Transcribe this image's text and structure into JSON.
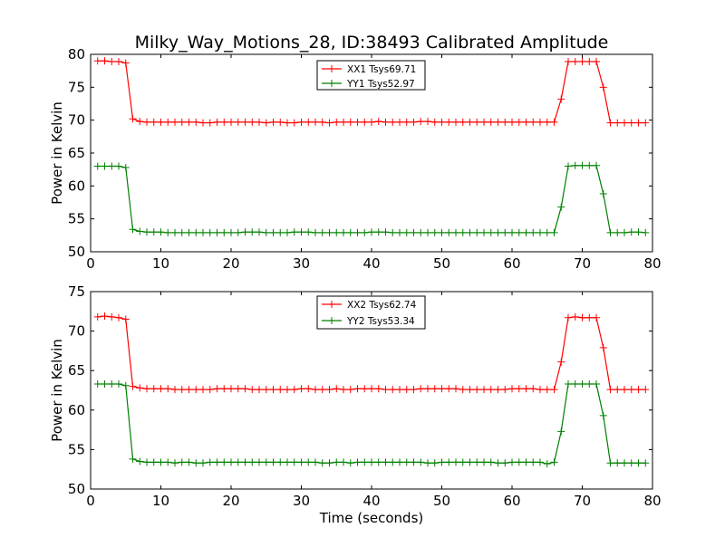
{
  "page": {
    "title": "Milky_Way_Motions_28, ID:38493 Calibrated Amplitude"
  },
  "colors": {
    "series_a": "#ff0000",
    "series_b": "#008000",
    "axes": "#000000",
    "background": "#ffffff"
  },
  "chart_data": [
    {
      "type": "line",
      "title": "Milky_Way_Motions_28, ID:38493 Calibrated Amplitude",
      "xlabel": "",
      "ylabel": "Power in Kelvin",
      "xlim": [
        0,
        80
      ],
      "ylim": [
        50,
        80
      ],
      "xticks": [
        0,
        10,
        20,
        30,
        40,
        50,
        60,
        70,
        80
      ],
      "yticks": [
        50,
        55,
        60,
        65,
        70,
        75,
        80
      ],
      "grid": false,
      "legend_position": "top-center",
      "marker": "plus",
      "series": [
        {
          "name": "XX1 Tsys69.71",
          "color": "#ff0000",
          "x": [
            1,
            2,
            3,
            4,
            5,
            6,
            7,
            8,
            9,
            10,
            11,
            12,
            13,
            14,
            15,
            16,
            17,
            18,
            19,
            20,
            21,
            22,
            23,
            24,
            25,
            26,
            27,
            28,
            29,
            30,
            31,
            32,
            33,
            34,
            35,
            36,
            37,
            38,
            39,
            40,
            41,
            42,
            43,
            44,
            45,
            46,
            47,
            48,
            49,
            50,
            51,
            52,
            53,
            54,
            55,
            56,
            57,
            58,
            59,
            60,
            61,
            62,
            63,
            64,
            65,
            66,
            67,
            68,
            69,
            70,
            71,
            72,
            73,
            74,
            75,
            76,
            77,
            78,
            79
          ],
          "values": [
            79.0,
            79.0,
            78.9,
            78.9,
            78.7,
            70.2,
            69.8,
            69.7,
            69.7,
            69.7,
            69.7,
            69.7,
            69.7,
            69.7,
            69.7,
            69.6,
            69.6,
            69.7,
            69.7,
            69.7,
            69.7,
            69.7,
            69.7,
            69.7,
            69.6,
            69.7,
            69.7,
            69.6,
            69.6,
            69.7,
            69.7,
            69.7,
            69.7,
            69.6,
            69.7,
            69.7,
            69.7,
            69.7,
            69.7,
            69.7,
            69.8,
            69.7,
            69.7,
            69.7,
            69.7,
            69.7,
            69.8,
            69.8,
            69.7,
            69.7,
            69.7,
            69.7,
            69.7,
            69.7,
            69.7,
            69.7,
            69.7,
            69.7,
            69.7,
            69.7,
            69.7,
            69.7,
            69.7,
            69.7,
            69.7,
            69.7,
            73.2,
            78.9,
            78.9,
            78.9,
            78.9,
            78.9,
            75.0,
            69.6,
            69.6,
            69.6,
            69.6,
            69.6,
            69.6
          ]
        },
        {
          "name": "YY1 Tsys52.97",
          "color": "#008000",
          "x": [
            1,
            2,
            3,
            4,
            5,
            6,
            7,
            8,
            9,
            10,
            11,
            12,
            13,
            14,
            15,
            16,
            17,
            18,
            19,
            20,
            21,
            22,
            23,
            24,
            25,
            26,
            27,
            28,
            29,
            30,
            31,
            32,
            33,
            34,
            35,
            36,
            37,
            38,
            39,
            40,
            41,
            42,
            43,
            44,
            45,
            46,
            47,
            48,
            49,
            50,
            51,
            52,
            53,
            54,
            55,
            56,
            57,
            58,
            59,
            60,
            61,
            62,
            63,
            64,
            65,
            66,
            67,
            68,
            69,
            70,
            71,
            72,
            73,
            74,
            75,
            76,
            77,
            78,
            79
          ],
          "values": [
            63.0,
            63.0,
            63.0,
            63.0,
            62.8,
            53.4,
            53.1,
            53.0,
            53.0,
            53.0,
            52.9,
            52.9,
            52.9,
            52.9,
            52.9,
            52.9,
            52.9,
            52.9,
            52.9,
            52.9,
            52.9,
            53.0,
            53.0,
            53.0,
            52.9,
            52.9,
            52.9,
            52.9,
            53.0,
            53.0,
            53.0,
            52.9,
            52.9,
            52.9,
            52.9,
            52.9,
            52.9,
            52.9,
            52.9,
            53.0,
            53.0,
            53.0,
            52.9,
            52.9,
            52.9,
            52.9,
            52.9,
            52.9,
            52.9,
            52.9,
            52.9,
            52.9,
            52.9,
            52.9,
            52.9,
            52.9,
            52.9,
            52.9,
            52.9,
            52.9,
            52.9,
            52.9,
            52.9,
            52.9,
            52.9,
            52.9,
            56.8,
            63.0,
            63.1,
            63.1,
            63.1,
            63.1,
            58.8,
            52.9,
            52.9,
            52.9,
            53.0,
            53.0,
            52.9
          ]
        }
      ]
    },
    {
      "type": "line",
      "title": "",
      "xlabel": "Time (seconds)",
      "ylabel": "Power in Kelvin",
      "xlim": [
        0,
        80
      ],
      "ylim": [
        50,
        75
      ],
      "xticks": [
        0,
        10,
        20,
        30,
        40,
        50,
        60,
        70,
        80
      ],
      "yticks": [
        50,
        55,
        60,
        65,
        70,
        75
      ],
      "grid": false,
      "legend_position": "top-center",
      "marker": "plus",
      "series": [
        {
          "name": "XX2 Tsys62.74",
          "color": "#ff0000",
          "x": [
            1,
            2,
            3,
            4,
            5,
            6,
            7,
            8,
            9,
            10,
            11,
            12,
            13,
            14,
            15,
            16,
            17,
            18,
            19,
            20,
            21,
            22,
            23,
            24,
            25,
            26,
            27,
            28,
            29,
            30,
            31,
            32,
            33,
            34,
            35,
            36,
            37,
            38,
            39,
            40,
            41,
            42,
            43,
            44,
            45,
            46,
            47,
            48,
            49,
            50,
            51,
            52,
            53,
            54,
            55,
            56,
            57,
            58,
            59,
            60,
            61,
            62,
            63,
            64,
            65,
            66,
            67,
            68,
            69,
            70,
            71,
            72,
            73,
            74,
            75,
            76,
            77,
            78,
            79
          ],
          "values": [
            71.8,
            71.9,
            71.8,
            71.7,
            71.5,
            63.0,
            62.8,
            62.7,
            62.7,
            62.7,
            62.7,
            62.6,
            62.6,
            62.6,
            62.6,
            62.6,
            62.6,
            62.7,
            62.7,
            62.7,
            62.7,
            62.7,
            62.6,
            62.6,
            62.6,
            62.6,
            62.6,
            62.6,
            62.6,
            62.7,
            62.7,
            62.6,
            62.6,
            62.6,
            62.7,
            62.6,
            62.6,
            62.7,
            62.7,
            62.7,
            62.7,
            62.6,
            62.6,
            62.6,
            62.6,
            62.6,
            62.7,
            62.7,
            62.7,
            62.7,
            62.7,
            62.7,
            62.6,
            62.6,
            62.6,
            62.6,
            62.6,
            62.6,
            62.6,
            62.7,
            62.7,
            62.7,
            62.7,
            62.6,
            62.6,
            62.6,
            66.1,
            71.7,
            71.8,
            71.7,
            71.7,
            71.7,
            67.9,
            62.6,
            62.6,
            62.6,
            62.6,
            62.6,
            62.6
          ]
        },
        {
          "name": "YY2 Tsys53.34",
          "color": "#008000",
          "x": [
            1,
            2,
            3,
            4,
            5,
            6,
            7,
            8,
            9,
            10,
            11,
            12,
            13,
            14,
            15,
            16,
            17,
            18,
            19,
            20,
            21,
            22,
            23,
            24,
            25,
            26,
            27,
            28,
            29,
            30,
            31,
            32,
            33,
            34,
            35,
            36,
            37,
            38,
            39,
            40,
            41,
            42,
            43,
            44,
            45,
            46,
            47,
            48,
            49,
            50,
            51,
            52,
            53,
            54,
            55,
            56,
            57,
            58,
            59,
            60,
            61,
            62,
            63,
            64,
            65,
            66,
            67,
            68,
            69,
            70,
            71,
            72,
            73,
            74,
            75,
            76,
            77,
            78,
            79
          ],
          "values": [
            63.3,
            63.3,
            63.3,
            63.3,
            63.1,
            53.8,
            53.5,
            53.4,
            53.4,
            53.4,
            53.4,
            53.3,
            53.4,
            53.4,
            53.3,
            53.3,
            53.4,
            53.4,
            53.4,
            53.4,
            53.4,
            53.4,
            53.4,
            53.4,
            53.4,
            53.4,
            53.4,
            53.4,
            53.4,
            53.4,
            53.4,
            53.4,
            53.3,
            53.3,
            53.4,
            53.4,
            53.3,
            53.4,
            53.4,
            53.4,
            53.4,
            53.4,
            53.4,
            53.4,
            53.4,
            53.4,
            53.4,
            53.3,
            53.3,
            53.4,
            53.4,
            53.4,
            53.4,
            53.4,
            53.4,
            53.4,
            53.4,
            53.3,
            53.3,
            53.4,
            53.4,
            53.4,
            53.4,
            53.4,
            53.2,
            53.4,
            57.3,
            63.3,
            63.3,
            63.3,
            63.3,
            63.3,
            59.3,
            53.3,
            53.3,
            53.3,
            53.3,
            53.3,
            53.3
          ]
        }
      ]
    }
  ]
}
